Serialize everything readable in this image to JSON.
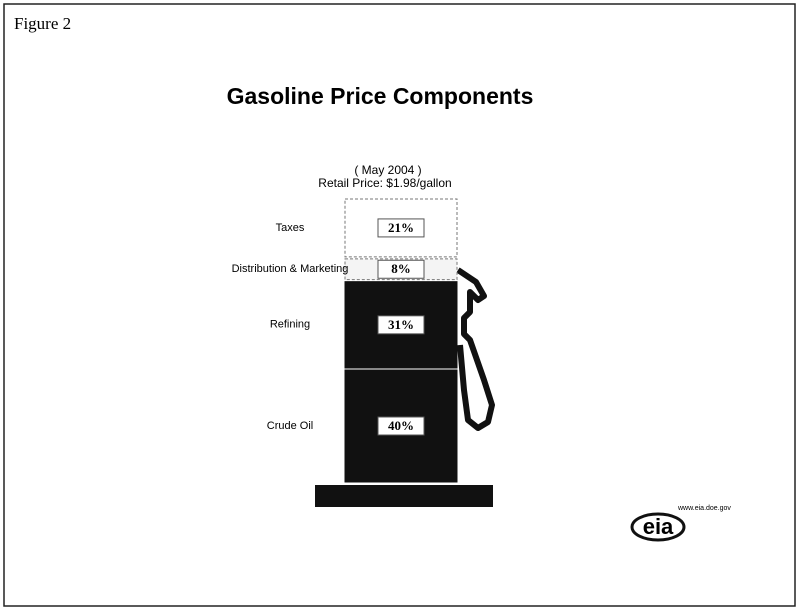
{
  "figure_label": "Figure 2",
  "chart_data": {
    "type": "stacked-column",
    "title": "Gasoline Price Components",
    "subtitle": [
      "( May 2004 )",
      "Retail Price: $1.98/gallon"
    ],
    "series": [
      {
        "name": "Crude Oil",
        "color": "#111111",
        "values": [
          40
        ],
        "value_labels": [
          "40%"
        ]
      },
      {
        "name": "Refining",
        "color": "#111111",
        "values": [
          31
        ],
        "value_labels": [
          "31%"
        ]
      },
      {
        "name": "Distribution & Marketing",
        "color": "#f4f4f4",
        "values": [
          8
        ],
        "value_labels": [
          "8%"
        ]
      },
      {
        "name": "Taxes",
        "color": "#ffffff",
        "values": [
          21
        ],
        "value_labels": [
          "21%"
        ]
      }
    ]
  },
  "logo": {
    "text": "eia",
    "url": "www.eia.doe.gov"
  }
}
